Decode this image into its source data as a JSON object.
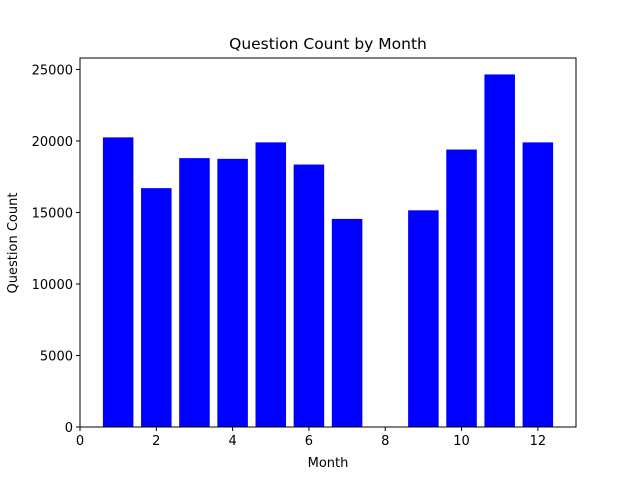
{
  "chart_data": {
    "type": "bar",
    "title": "Question Count by Month",
    "xlabel": "Month",
    "ylabel": "Question Count",
    "categories": [
      1,
      2,
      3,
      4,
      5,
      6,
      7,
      9,
      10,
      11,
      12
    ],
    "values": [
      20250,
      16700,
      18800,
      18750,
      19900,
      18350,
      14550,
      15150,
      19400,
      24650,
      19900
    ],
    "xlim": [
      0,
      13
    ],
    "ylim": [
      0,
      25800
    ],
    "xticks": [
      0,
      2,
      4,
      6,
      8,
      10,
      12
    ],
    "yticks": [
      0,
      5000,
      10000,
      15000,
      20000,
      25000
    ],
    "grid": false,
    "bar_color": "#0000ff"
  }
}
